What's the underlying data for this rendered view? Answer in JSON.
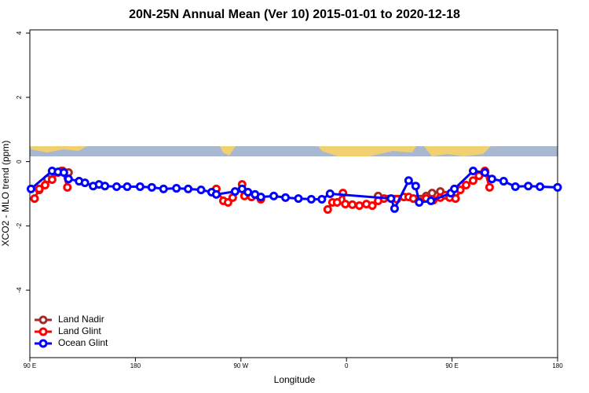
{
  "chart_data": {
    "type": "line",
    "title": "20N-25N Annual Mean (Ver 10)   2015-01-01 to 2020-12-18",
    "x_label": "Longitude",
    "y_label": "XCO2 - MLO trend (ppm)",
    "xlim": [
      90,
      540
    ],
    "ylim": [
      -6.1,
      4.1
    ],
    "xticks": [
      {
        "value": 90,
        "label": "90 E"
      },
      {
        "value": 180,
        "label": "180"
      },
      {
        "value": 270,
        "label": "90 W"
      },
      {
        "value": 360,
        "label": "0"
      },
      {
        "value": 450,
        "label": "90 E"
      },
      {
        "value": 540,
        "label": "180"
      }
    ],
    "yticks": [
      4,
      2,
      0,
      -2,
      -4
    ],
    "legend": "bottom-left",
    "series": [
      {
        "name": "Land Nadir",
        "color": "#a52a2a",
        "x": [
          98,
          105,
          117,
          123,
          250,
          387,
          428,
          433,
          440,
          453
        ],
        "values": [
          -0.88,
          -0.54,
          -0.29,
          -0.34,
          null,
          -1.07,
          -1.07,
          -0.98,
          -0.93,
          -0.98
        ]
      },
      {
        "name": "Land Glint",
        "color": "#ff0000",
        "x": [
          94,
          98,
          103,
          109,
          114,
          118,
          122,
          200,
          249,
          255,
          259,
          263,
          271,
          273,
          279,
          287,
          320,
          344,
          348,
          352,
          357,
          359,
          365,
          371,
          377,
          382,
          387,
          392,
          403,
          409,
          413,
          417,
          428,
          434,
          440,
          444,
          448,
          453,
          457,
          462,
          468,
          473,
          478,
          482
        ],
        "values": [
          -1.15,
          -0.85,
          -0.73,
          -0.56,
          -0.34,
          -0.29,
          -0.8,
          null,
          -0.85,
          -1.22,
          -1.27,
          -1.12,
          -0.71,
          -1.07,
          -1.1,
          -1.17,
          null,
          -1.49,
          -1.27,
          -1.27,
          -0.98,
          -1.32,
          -1.34,
          -1.37,
          -1.32,
          -1.37,
          -1.22,
          -1.15,
          -1.17,
          -1.1,
          -1.1,
          -1.15,
          -1.15,
          -1.2,
          -1.12,
          -1.05,
          -1.12,
          -1.15,
          -0.88,
          -0.73,
          -0.59,
          -0.44,
          -0.29,
          -0.8
        ]
      },
      {
        "name": "Ocean Glint",
        "color": "#0000ff",
        "x": [
          91,
          109,
          114,
          119,
          123,
          132,
          137,
          144,
          149,
          154,
          164,
          173,
          184,
          194,
          204,
          215,
          225,
          236,
          245,
          249,
          265,
          271,
          276,
          282,
          287,
          298,
          308,
          319,
          330,
          339,
          346,
          398,
          401,
          413,
          419,
          422,
          432,
          449,
          452,
          468,
          478,
          484,
          494,
          504,
          515,
          525,
          540
        ],
        "values": [
          -0.85,
          -0.29,
          -0.32,
          -0.34,
          -0.54,
          -0.61,
          -0.66,
          -0.76,
          -0.71,
          -0.76,
          -0.78,
          -0.78,
          -0.78,
          -0.8,
          -0.85,
          -0.83,
          -0.85,
          -0.88,
          -0.95,
          -1.02,
          -0.93,
          -0.85,
          -0.95,
          -1.02,
          -1.1,
          -1.07,
          -1.12,
          -1.15,
          -1.17,
          -1.17,
          -1.0,
          -1.15,
          -1.46,
          -0.59,
          -0.76,
          -1.27,
          -1.22,
          -0.98,
          -0.85,
          -0.29,
          -0.34,
          -0.54,
          -0.61,
          -0.78,
          -0.76,
          -0.78,
          -0.8
        ]
      }
    ]
  }
}
